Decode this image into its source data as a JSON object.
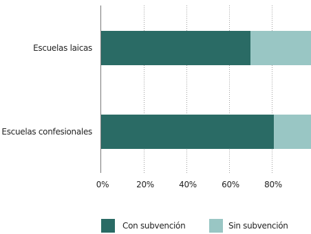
{
  "chart_data": {
    "type": "bar",
    "orientation": "horizontal",
    "stacked": true,
    "categories": [
      "Escuelas laicas",
      "Escuelas confesionales"
    ],
    "series": [
      {
        "name": "Con subvención",
        "values": [
          70,
          81
        ],
        "color": "#2a6b65"
      },
      {
        "name": "Sin subvención",
        "values": [
          30,
          19
        ],
        "color": "#99c6c4"
      }
    ],
    "xlim": [
      0,
      100
    ],
    "xticks": [
      {
        "value": 0,
        "label": "0%"
      },
      {
        "value": 20,
        "label": "20%"
      },
      {
        "value": 40,
        "label": "40%"
      },
      {
        "value": 60,
        "label": "60%"
      },
      {
        "value": 80,
        "label": "80%"
      }
    ],
    "grid": "vertical dotted",
    "legend_position": "bottom"
  }
}
